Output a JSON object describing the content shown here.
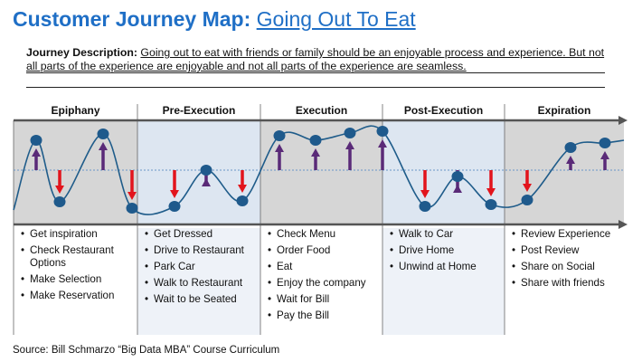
{
  "header": {
    "title": "Customer Journey Map:",
    "subtitle": "Going Out To Eat"
  },
  "description": {
    "label": "Journey Description:",
    "text": "Going out to eat with friends or family should be an enjoyable process and experience. But not all parts of the experience are enjoyable and not all parts of the experience are seamless."
  },
  "colors": {
    "title": "#1f6fc6",
    "curve": "#1f5c8a",
    "node": "#1f5a8c",
    "arrow_up": "#5a2a78",
    "arrow_down": "#e2141c",
    "band_grey": "#d6d6d6",
    "band_blue": "#dde6f1",
    "timeline": "#555555"
  },
  "phases": [
    {
      "name": "Epiphany",
      "tone": "grey",
      "steps": [
        "Get inspiration",
        "Check Restaurant Options",
        "Make Selection",
        "Make Reservation"
      ]
    },
    {
      "name": "Pre-Execution",
      "tone": "blue",
      "steps": [
        "Get Dressed",
        "Drive to Restaurant",
        "Park Car",
        "Walk to Restaurant",
        "Wait to be Seated"
      ]
    },
    {
      "name": "Execution",
      "tone": "grey",
      "steps": [
        "Check Menu",
        "Order Food",
        "Eat",
        "Enjoy the company",
        "Wait for Bill",
        "Pay the Bill"
      ]
    },
    {
      "name": "Post-Execution",
      "tone": "blue",
      "steps": [
        "Walk to Car",
        "Drive Home",
        "Unwind at Home"
      ]
    },
    {
      "name": "Expiration",
      "tone": "grey",
      "steps": [
        "Review Experience",
        "Post Review",
        "Share on Social",
        "Share with friends"
      ]
    }
  ],
  "experience_nodes": [
    {
      "phase": 0,
      "sentiment": "high"
    },
    {
      "phase": 0,
      "sentiment": "low"
    },
    {
      "phase": 0,
      "sentiment": "high"
    },
    {
      "phase": 0,
      "sentiment": "low"
    },
    {
      "phase": 1,
      "sentiment": "low"
    },
    {
      "phase": 1,
      "sentiment": "high"
    },
    {
      "phase": 1,
      "sentiment": "low"
    },
    {
      "phase": 2,
      "sentiment": "high"
    },
    {
      "phase": 2,
      "sentiment": "high"
    },
    {
      "phase": 2,
      "sentiment": "high"
    },
    {
      "phase": 2,
      "sentiment": "high"
    },
    {
      "phase": 3,
      "sentiment": "low"
    },
    {
      "phase": 3,
      "sentiment": "high"
    },
    {
      "phase": 3,
      "sentiment": "low"
    },
    {
      "phase": 4,
      "sentiment": "low"
    },
    {
      "phase": 4,
      "sentiment": "high"
    },
    {
      "phase": 4,
      "sentiment": "high"
    }
  ],
  "footer": {
    "source": "Source: Bill Schmarzo “Big Data MBA” Course Curriculum"
  }
}
